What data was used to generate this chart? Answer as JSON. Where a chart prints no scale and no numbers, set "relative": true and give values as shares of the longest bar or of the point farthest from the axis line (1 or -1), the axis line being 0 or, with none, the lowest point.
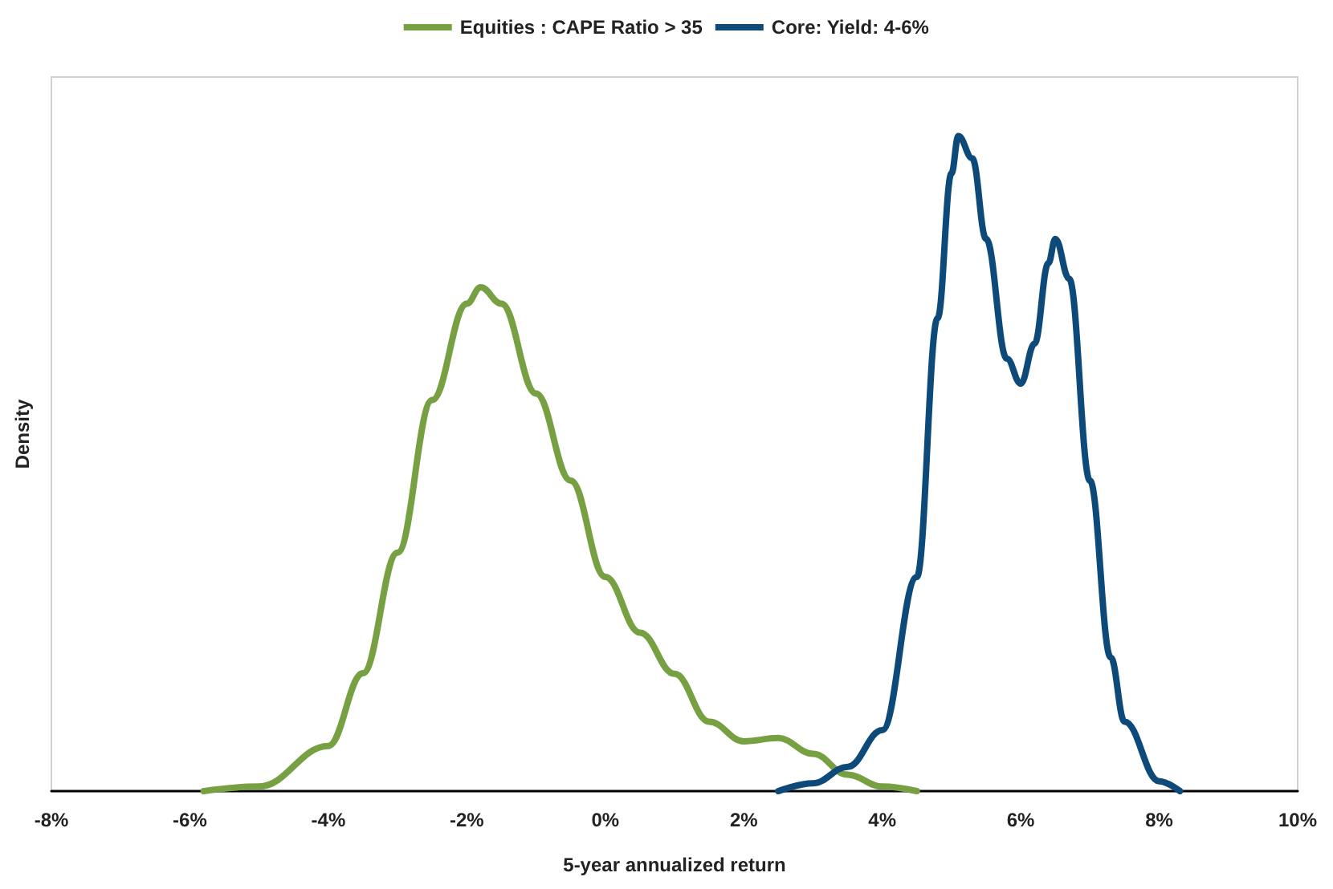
{
  "chart_data": {
    "type": "line",
    "xlabel": "5-year annualized return",
    "ylabel": "Density",
    "relative": true,
    "legend": "top",
    "grid": false,
    "marker": "none",
    "line_style": "solid",
    "xlim": [
      -8,
      10
    ],
    "xticks": [
      {
        "value": -8,
        "label": "-8%"
      },
      {
        "value": -6,
        "label": "-6%"
      },
      {
        "value": -4,
        "label": "-4%"
      },
      {
        "value": -2,
        "label": "-2%"
      },
      {
        "value": 0,
        "label": "0%"
      },
      {
        "value": 2,
        "label": "2%"
      },
      {
        "value": 4,
        "label": "4%"
      },
      {
        "value": 6,
        "label": "6%"
      },
      {
        "value": 8,
        "label": "8%"
      },
      {
        "value": 10,
        "label": "10%"
      }
    ],
    "series": [
      {
        "name": "Equities : CAPE Ratio > 35",
        "color": "#77a043",
        "x": [
          -5.8,
          -5,
          -4,
          -3.5,
          -3,
          -2.5,
          -2,
          -1.8,
          -1.5,
          -1,
          -0.5,
          0,
          0.5,
          1,
          1.5,
          2,
          2.5,
          3,
          3.5,
          4,
          4.5
        ],
        "values": [
          0,
          0.007,
          0.069,
          0.18,
          0.364,
          0.597,
          0.744,
          0.769,
          0.744,
          0.607,
          0.474,
          0.327,
          0.242,
          0.179,
          0.106,
          0.076,
          0.081,
          0.057,
          0.025,
          0.007,
          0
        ]
      },
      {
        "name": "Core: Yield: 4-6%",
        "color": "#0d4a7a",
        "x": [
          2.5,
          3,
          3.5,
          4,
          4.5,
          4.8,
          5,
          5.1,
          5.3,
          5.5,
          5.8,
          6,
          6.2,
          6.4,
          6.5,
          6.7,
          7,
          7.3,
          7.5,
          8,
          8.3
        ],
        "values": [
          0,
          0.012,
          0.037,
          0.093,
          0.327,
          0.722,
          0.943,
          1,
          0.966,
          0.843,
          0.66,
          0.622,
          0.683,
          0.806,
          0.843,
          0.782,
          0.474,
          0.204,
          0.106,
          0.015,
          0
        ]
      }
    ]
  }
}
